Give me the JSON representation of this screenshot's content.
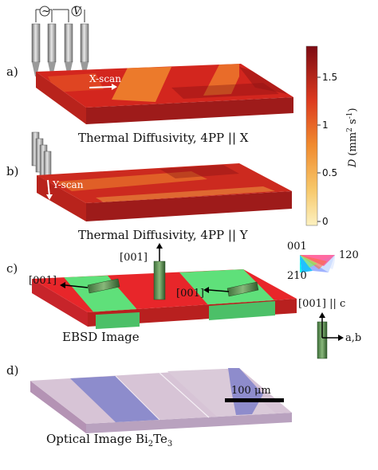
{
  "panels": {
    "a": {
      "label": "a)",
      "scan_label": "X-scan",
      "caption": "Thermal Diffusivity, 4PP || X",
      "probe_symbols": [
        "~",
        "V"
      ]
    },
    "b": {
      "label": "b)",
      "scan_label": "Y-scan",
      "caption": "Thermal Diffusivity, 4PP || Y"
    },
    "c": {
      "label": "c)",
      "caption": "EBSD Image",
      "arrows": [
        "[001]",
        "[001]",
        "[001]"
      ],
      "ipf": {
        "top": "001",
        "right": "120",
        "bottom": "210"
      },
      "crystal_axes": {
        "header": "[001] || c",
        "side": "a,b"
      }
    },
    "d": {
      "label": "d)",
      "caption_main": "Optical Image Bi",
      "caption_sub1": "2",
      "caption_mid": "Te",
      "caption_sub2": "3",
      "scale_bar": "100 μm"
    }
  },
  "colorbar": {
    "ticks": [
      "1.5",
      "1",
      "0.5",
      "0"
    ],
    "label_var": "D",
    "label_unit": "(mm",
    "label_sup1": "2",
    "label_mid": " s",
    "label_sup2": "-1",
    "label_end": ")"
  },
  "colors": {
    "heat_dark": "#7a0c10",
    "heat_mid": "#d3261e",
    "heat_high": "#f28a2e",
    "heat_low": "#fbe6a6",
    "ebsd_red": "#e8262a",
    "ebsd_green": "#5fe07a",
    "optical_blue": "#8d8ccc",
    "optical_pink": "#d7c4d6"
  }
}
